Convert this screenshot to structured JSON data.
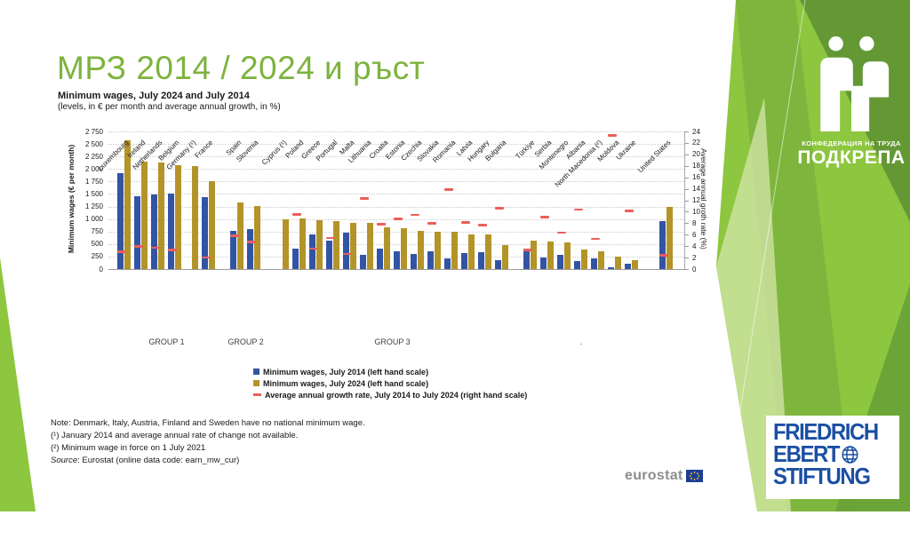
{
  "slide": {
    "title": "МРЗ 2014 / 2024 и ръст"
  },
  "chart_data": {
    "type": "bar",
    "title": "Minimum wages, July 2024 and July 2014",
    "subtitle": "(levels, in € per month and average annual growth, in %)",
    "left_axis": {
      "label": "Minimum wages (€ per month)",
      "min": 0,
      "max": 2750,
      "step": 250
    },
    "right_axis": {
      "label": "Average annual groth rate (%)",
      "min": 0,
      "max": 24,
      "step": 2
    },
    "grid": true,
    "legend_position": "bottom-center",
    "legend": [
      {
        "marker": "square",
        "color": "#3354a4",
        "label": "Minimum wages, July 2014 (left hand scale)"
      },
      {
        "marker": "square",
        "color": "#b39429",
        "label": "Minimum wages, July 2024 (left hand scale)"
      },
      {
        "marker": "dash",
        "color": "#ec5f5a",
        "label": "Average annual growth rate, July 2014 to July 2024 (right hand scale)"
      }
    ],
    "series_names": [
      "Minimum wages, July 2014",
      "Minimum wages, July 2024",
      "Average annual growth rate 2014-2024 (%)"
    ],
    "groups": [
      {
        "label": "GROUP 1",
        "start": 0,
        "end": 5
      },
      {
        "label": "GROUP 2",
        "start": 6,
        "end": 7
      },
      {
        "label": "GROUP 3",
        "start": 8,
        "end": 21
      },
      {
        "label": ".",
        "start": 22,
        "end": 28
      }
    ],
    "countries": [
      {
        "name": "Luxembourg",
        "mw_2014": 1920,
        "mw_2024": 2570,
        "growth": 3.0
      },
      {
        "name": "Ireland",
        "mw_2014": 1460,
        "mw_2024": 2145,
        "growth": 3.9
      },
      {
        "name": "Netherlands",
        "mw_2014": 1490,
        "mw_2024": 2135,
        "growth": 3.7
      },
      {
        "name": "Belgium",
        "mw_2014": 1500,
        "mw_2024": 2070,
        "growth": 3.3
      },
      {
        "name": "Germany (¹)",
        "mw_2014": null,
        "mw_2024": 2050,
        "growth": null
      },
      {
        "name": "France",
        "mw_2014": 1445,
        "mw_2024": 1765,
        "growth": 2.0
      },
      {
        "name": "Spain",
        "mw_2014": 755,
        "mw_2024": 1325,
        "growth": 5.8
      },
      {
        "name": "Slovenia",
        "mw_2014": 790,
        "mw_2024": 1255,
        "growth": 4.7
      },
      {
        "name": "Cyprus (¹)",
        "mw_2014": null,
        "mw_2024": 1000,
        "growth": null
      },
      {
        "name": "Poland",
        "mw_2014": 405,
        "mw_2024": 1010,
        "growth": 9.5
      },
      {
        "name": "Greece",
        "mw_2014": 685,
        "mw_2024": 970,
        "growth": 3.5
      },
      {
        "name": "Portugal",
        "mw_2014": 565,
        "mw_2024": 955,
        "growth": 5.4
      },
      {
        "name": "Malta",
        "mw_2014": 720,
        "mw_2024": 925,
        "growth": 2.6
      },
      {
        "name": "Lithuania",
        "mw_2014": 290,
        "mw_2024": 925,
        "growth": 12.3
      },
      {
        "name": "Croatia",
        "mw_2014": 400,
        "mw_2024": 840,
        "growth": 7.8
      },
      {
        "name": "Estonia",
        "mw_2014": 355,
        "mw_2024": 820,
        "growth": 8.7
      },
      {
        "name": "Czechia",
        "mw_2014": 310,
        "mw_2024": 765,
        "growth": 9.4
      },
      {
        "name": "Slovakia",
        "mw_2014": 350,
        "mw_2024": 750,
        "growth": 7.9
      },
      {
        "name": "Romania",
        "mw_2014": 205,
        "mw_2024": 745,
        "growth": 13.8
      },
      {
        "name": "Latvia",
        "mw_2014": 320,
        "mw_2024": 700,
        "growth": 8.1
      },
      {
        "name": "Hungary",
        "mw_2014": 335,
        "mw_2024": 695,
        "growth": 7.6
      },
      {
        "name": "Bulgaria",
        "mw_2014": 175,
        "mw_2024": 475,
        "growth": 10.6
      },
      {
        "name": "Türkiye",
        "mw_2014": 405,
        "mw_2024": 560,
        "growth": 3.3
      },
      {
        "name": "Serbia",
        "mw_2014": 230,
        "mw_2024": 545,
        "growth": 9.0
      },
      {
        "name": "Montenegro",
        "mw_2014": 290,
        "mw_2024": 530,
        "growth": 6.3
      },
      {
        "name": "Albania",
        "mw_2014": 160,
        "mw_2024": 390,
        "growth": 10.3
      },
      {
        "name": "North Macedonia (²)",
        "mw_2014": 215,
        "mw_2024": 360,
        "growth": 5.2
      },
      {
        "name": "Moldova",
        "mw_2014": 40,
        "mw_2024": 250,
        "growth": 23.3
      },
      {
        "name": "Ukraine",
        "mw_2014": 100,
        "mw_2024": 175,
        "growth": 10.1
      },
      {
        "name": "United States",
        "mw_2014": 960,
        "mw_2024": 1240,
        "growth": 2.4
      }
    ]
  },
  "notes": {
    "note": "Note: Denmark, Italy, Austria, Finland and Sweden have no national minimum  wage.",
    "fn1": "(¹) January 2014 and average annual  rate of change  not available.",
    "fn2": "(²) Minimum  wage in force on 1 July 2021",
    "source_label": "Source",
    "source_text": ": Eurostat (online  data code:  earn_mw_cur)"
  },
  "logos": {
    "eurostat_text": "eurostat",
    "podkrepa": {
      "line1": "КОНФЕДЕРАЦИЯ НА ТРУДА",
      "line2": "ПОДКРЕПА"
    },
    "fes": {
      "line1": "FRIEDRICH",
      "line2": "EBERT",
      "line3": "STIFTUNG"
    }
  },
  "colors": {
    "title_green": "#7db33c",
    "bar_2014_blue": "#3354a4",
    "bar_2024_gold": "#b39429",
    "growth_red": "#ec5f5a",
    "panel_green": "#8dc63f",
    "fes_blue": "#1b4fa3",
    "eu_flag_blue": "#1d3e96"
  }
}
